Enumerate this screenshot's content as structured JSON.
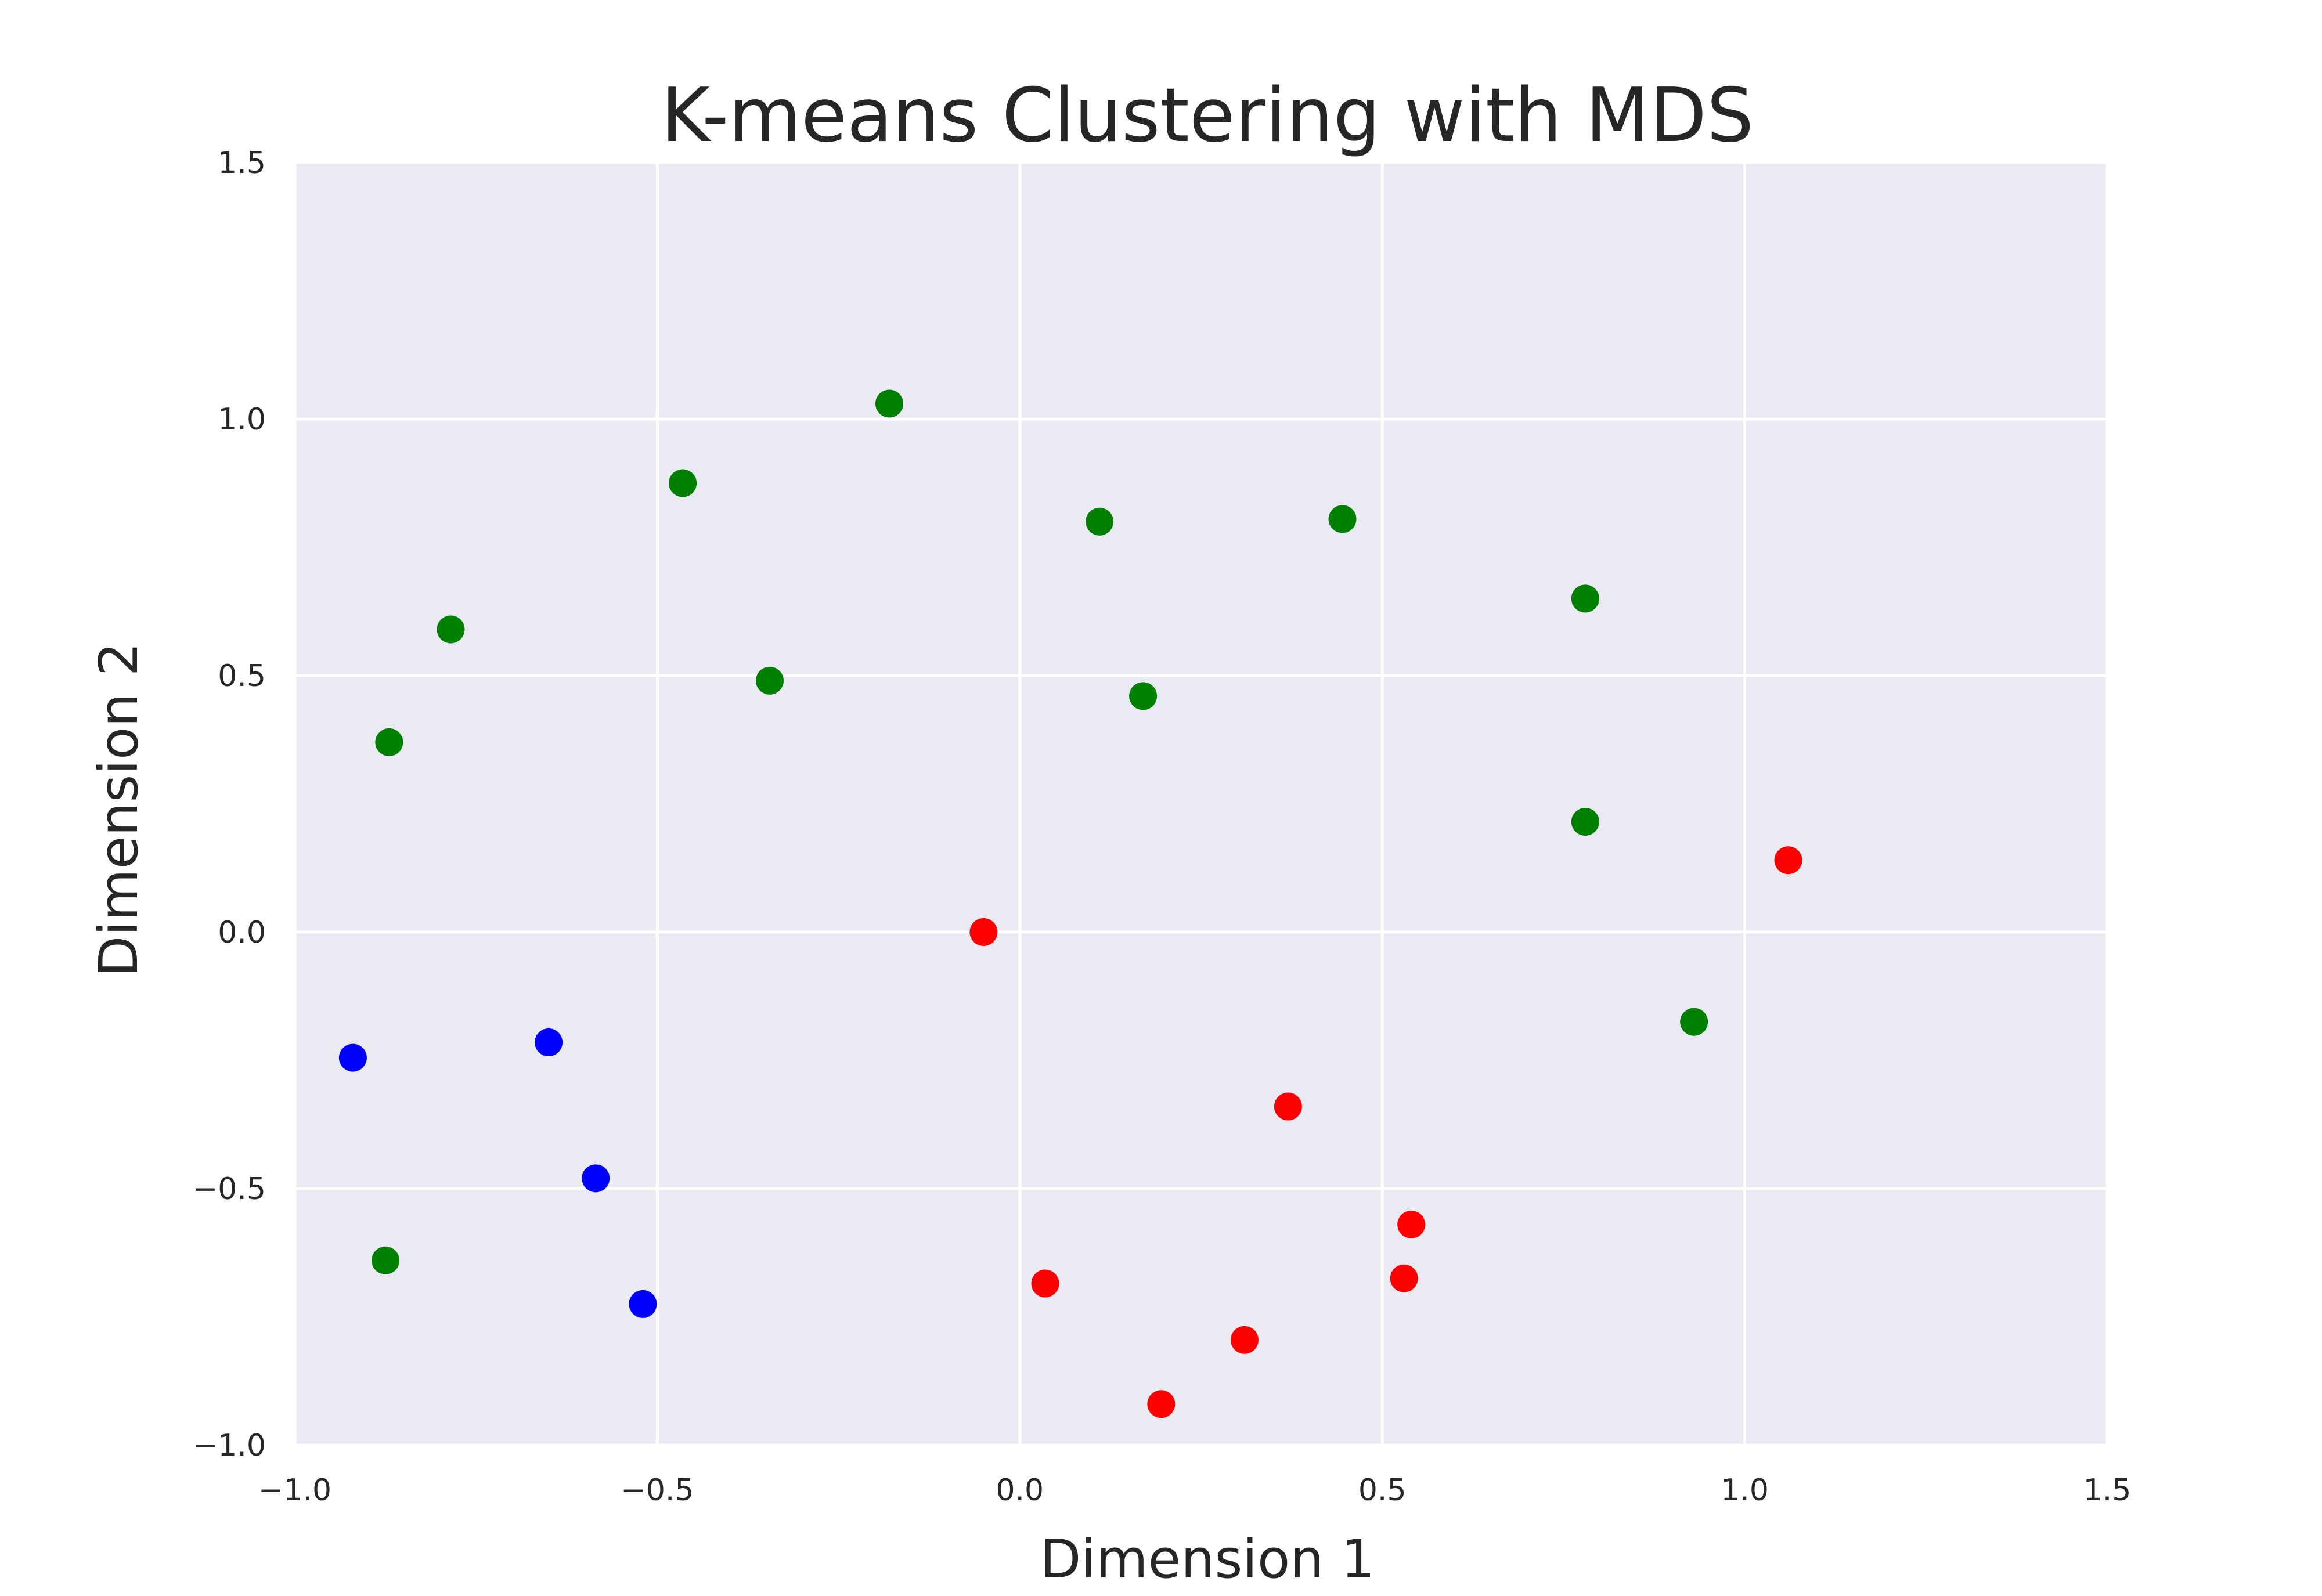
{
  "chart_data": {
    "type": "scatter",
    "title": "K-means Clustering with MDS",
    "xlabel": "Dimension 1",
    "ylabel": "Dimension 2",
    "xlim": [
      -1.0,
      1.5
    ],
    "ylim": [
      -1.0,
      1.5
    ],
    "grid": true,
    "background_color": "#eaeaf2",
    "x_ticks": [
      -1.0,
      -0.5,
      0.0,
      0.5,
      1.0,
      1.5
    ],
    "y_ticks": [
      -1.0,
      -0.5,
      0.0,
      0.5,
      1.0,
      1.5
    ],
    "x_tick_labels": [
      "−1.0",
      "−0.5",
      "0.0",
      "0.5",
      "1.0",
      "1.5"
    ],
    "y_tick_labels": [
      "−1.0",
      "−0.5",
      "0.0",
      "0.5",
      "1.0",
      "1.5"
    ],
    "series": [
      {
        "color": "#008000",
        "points": [
          [
            -0.18,
            1.03
          ],
          [
            -0.465,
            0.875
          ],
          [
            0.11,
            0.8
          ],
          [
            0.445,
            0.805
          ],
          [
            0.78,
            0.65
          ],
          [
            -0.785,
            0.59
          ],
          [
            -0.345,
            0.49
          ],
          [
            0.17,
            0.46
          ],
          [
            -0.87,
            0.37
          ],
          [
            0.78,
            0.215
          ],
          [
            0.93,
            -0.175
          ],
          [
            -0.875,
            -0.64
          ]
        ]
      },
      {
        "color": "#ff0000",
        "points": [
          [
            1.06,
            0.14
          ],
          [
            -0.05,
            0.0
          ],
          [
            0.37,
            -0.34
          ],
          [
            0.54,
            -0.57
          ],
          [
            0.53,
            -0.675
          ],
          [
            0.035,
            -0.685
          ],
          [
            0.31,
            -0.795
          ],
          [
            0.195,
            -0.92
          ]
        ]
      },
      {
        "color": "#0000ff",
        "points": [
          [
            -0.92,
            -0.245
          ],
          [
            -0.65,
            -0.215
          ],
          [
            -0.585,
            -0.48
          ],
          [
            -0.52,
            -0.725
          ]
        ]
      }
    ]
  }
}
